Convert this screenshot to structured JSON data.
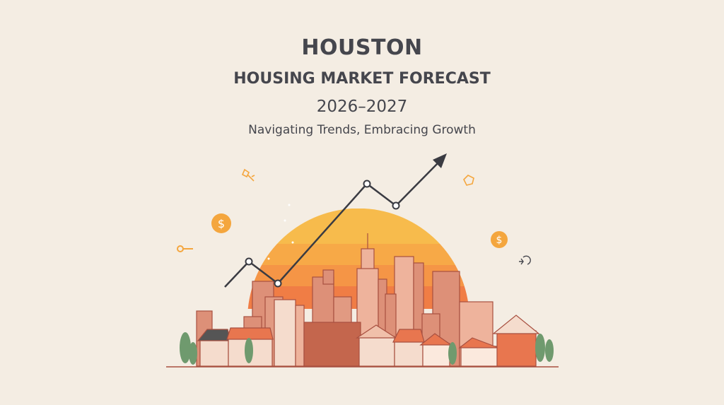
{
  "header": {
    "title": "HOUSTON",
    "subtitle": "HOUSING MARKET FORECAST",
    "years": "2026–2027",
    "tagline": "Navigating Trends, Embracing Growth"
  },
  "illustration": {
    "coin_symbol": "$",
    "icons": [
      "dollar-coin-icon",
      "key-icon",
      "pin-icon",
      "house-icon",
      "magnet-icon",
      "trend-arrow-icon"
    ],
    "colors": {
      "background": "#f4ede3",
      "text": "#45464d",
      "sun_top": "#f7bb4c",
      "sun_bottom": "#f07a45",
      "buildings": "#e0957c",
      "outline": "#a85040",
      "accent": "#f4a63e",
      "trees": "#6f9a6e"
    }
  }
}
